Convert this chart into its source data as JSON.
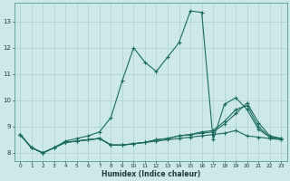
{
  "xlabel": "Humidex (Indice chaleur)",
  "background_color": "#cce8e8",
  "grid_color": "#aad0d0",
  "line_color": "#1a6b5e",
  "xlim": [
    -0.5,
    23.5
  ],
  "ylim": [
    7.7,
    13.7
  ],
  "yticks": [
    8,
    9,
    10,
    11,
    12,
    13
  ],
  "xticks": [
    0,
    1,
    2,
    3,
    4,
    5,
    6,
    7,
    8,
    9,
    10,
    11,
    12,
    13,
    14,
    15,
    16,
    17,
    18,
    19,
    20,
    21,
    22,
    23
  ],
  "line1_x": [
    0,
    1,
    2,
    3,
    4,
    5,
    6,
    7,
    8,
    9,
    10,
    11,
    12,
    13,
    14,
    15,
    16,
    17,
    18,
    19,
    20,
    21,
    22,
    23
  ],
  "line1_y": [
    8.7,
    8.2,
    8.0,
    8.2,
    8.45,
    8.55,
    8.65,
    8.8,
    9.35,
    10.75,
    12.0,
    11.45,
    11.1,
    11.65,
    12.2,
    13.4,
    13.35,
    8.5,
    9.85,
    10.1,
    9.65,
    8.9,
    8.6,
    8.55
  ],
  "line2_x": [
    0,
    1,
    2,
    3,
    4,
    5,
    6,
    7,
    8,
    9,
    10,
    11,
    12,
    13,
    14,
    15,
    16,
    17,
    18,
    19,
    20,
    21,
    22,
    23
  ],
  "line2_y": [
    8.7,
    8.2,
    8.0,
    8.2,
    8.4,
    8.45,
    8.5,
    8.55,
    8.3,
    8.3,
    8.35,
    8.4,
    8.45,
    8.5,
    8.55,
    8.6,
    8.65,
    8.7,
    8.75,
    8.85,
    8.65,
    8.6,
    8.55,
    8.5
  ],
  "line3_x": [
    0,
    1,
    2,
    3,
    4,
    5,
    6,
    7,
    8,
    9,
    10,
    11,
    12,
    13,
    14,
    15,
    16,
    17,
    18,
    19,
    20,
    21,
    22,
    23
  ],
  "line3_y": [
    8.7,
    8.2,
    8.0,
    8.2,
    8.4,
    8.45,
    8.5,
    8.55,
    8.3,
    8.3,
    8.35,
    8.4,
    8.5,
    8.55,
    8.65,
    8.7,
    8.8,
    8.85,
    9.2,
    9.65,
    9.8,
    9.0,
    8.6,
    8.55
  ],
  "line4_x": [
    0,
    1,
    2,
    3,
    4,
    5,
    6,
    7,
    8,
    9,
    10,
    11,
    12,
    13,
    14,
    15,
    16,
    17,
    18,
    19,
    20,
    21,
    22,
    23
  ],
  "line4_y": [
    8.7,
    8.2,
    8.0,
    8.2,
    8.4,
    8.45,
    8.5,
    8.55,
    8.3,
    8.3,
    8.35,
    8.4,
    8.5,
    8.55,
    8.65,
    8.7,
    8.75,
    8.8,
    9.1,
    9.5,
    9.9,
    9.15,
    8.65,
    8.55
  ]
}
